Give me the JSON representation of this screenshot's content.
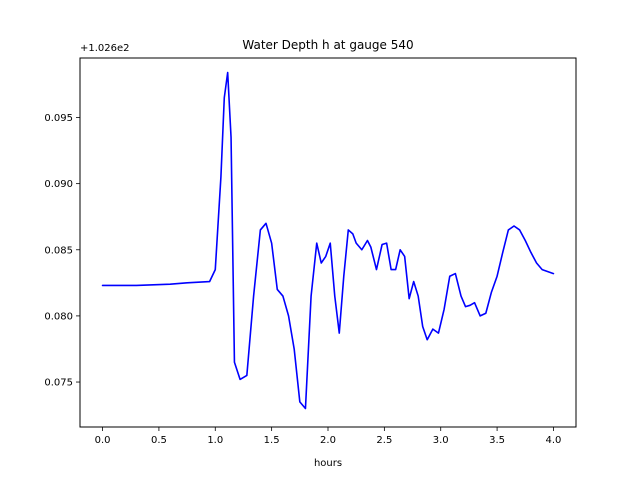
{
  "chart_data": {
    "type": "line",
    "title": "Water Depth h at gauge 540",
    "xlabel": "hours",
    "ylabel": "",
    "y_offset_label": "+1.026e2",
    "xlim": [
      -0.2,
      4.2
    ],
    "ylim": [
      0.0716,
      0.0995
    ],
    "x_ticks": [
      0.0,
      0.5,
      1.0,
      1.5,
      2.0,
      2.5,
      3.0,
      3.5,
      4.0
    ],
    "x_tick_labels": [
      "0.0",
      "0.5",
      "1.0",
      "1.5",
      "2.0",
      "2.5",
      "3.0",
      "3.5",
      "4.0"
    ],
    "y_ticks": [
      0.075,
      0.08,
      0.085,
      0.09,
      0.095
    ],
    "y_tick_labels": [
      "0.075",
      "0.080",
      "0.085",
      "0.090",
      "0.095"
    ],
    "grid": false,
    "series": [
      {
        "color": "#0000ff",
        "x": [
          0.0,
          0.3,
          0.6,
          0.75,
          0.95,
          1.0,
          1.05,
          1.08,
          1.11,
          1.14,
          1.17,
          1.22,
          1.28,
          1.34,
          1.4,
          1.45,
          1.5,
          1.55,
          1.6,
          1.65,
          1.7,
          1.75,
          1.8,
          1.85,
          1.9,
          1.94,
          1.98,
          2.02,
          2.06,
          2.1,
          2.14,
          2.18,
          2.22,
          2.25,
          2.3,
          2.35,
          2.38,
          2.43,
          2.48,
          2.52,
          2.56,
          2.6,
          2.64,
          2.68,
          2.72,
          2.76,
          2.8,
          2.84,
          2.88,
          2.93,
          2.98,
          3.03,
          3.08,
          3.13,
          3.18,
          3.22,
          3.26,
          3.3,
          3.35,
          3.4,
          3.45,
          3.5,
          3.55,
          3.6,
          3.65,
          3.7,
          3.75,
          3.8,
          3.85,
          3.9,
          4.0
        ],
        "y": [
          0.0823,
          0.0823,
          0.0824,
          0.0825,
          0.0826,
          0.0835,
          0.0905,
          0.0965,
          0.0984,
          0.0935,
          0.0765,
          0.0752,
          0.0755,
          0.0815,
          0.0865,
          0.087,
          0.0855,
          0.082,
          0.0815,
          0.08,
          0.0775,
          0.0735,
          0.073,
          0.0815,
          0.0855,
          0.084,
          0.0845,
          0.0855,
          0.0815,
          0.0787,
          0.083,
          0.0865,
          0.0862,
          0.0855,
          0.085,
          0.0857,
          0.0852,
          0.0835,
          0.0854,
          0.0855,
          0.0835,
          0.0835,
          0.085,
          0.0845,
          0.0813,
          0.0826,
          0.0815,
          0.0792,
          0.0782,
          0.079,
          0.0787,
          0.0805,
          0.083,
          0.0832,
          0.0815,
          0.0807,
          0.0808,
          0.081,
          0.08,
          0.0802,
          0.0818,
          0.083,
          0.0848,
          0.0865,
          0.0868,
          0.0865,
          0.0857,
          0.0848,
          0.084,
          0.0835,
          0.0832
        ]
      }
    ]
  }
}
